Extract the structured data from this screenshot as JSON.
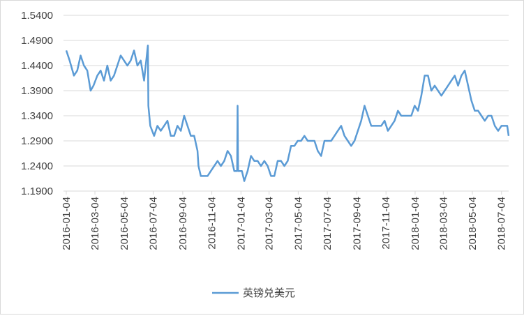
{
  "chart_data": {
    "type": "line",
    "x": [
      "2016-01-04",
      "2016-01-11",
      "2016-01-20",
      "2016-01-27",
      "2016-02-03",
      "2016-02-10",
      "2016-02-17",
      "2016-02-24",
      "2016-03-01",
      "2016-03-09",
      "2016-03-16",
      "2016-03-23",
      "2016-03-30",
      "2016-04-06",
      "2016-04-13",
      "2016-04-20",
      "2016-04-27",
      "2016-05-04",
      "2016-05-11",
      "2016-05-18",
      "2016-05-25",
      "2016-06-01",
      "2016-06-08",
      "2016-06-15",
      "2016-06-23",
      "2016-06-24",
      "2016-06-28",
      "2016-07-06",
      "2016-07-13",
      "2016-07-20",
      "2016-07-27",
      "2016-08-03",
      "2016-08-10",
      "2016-08-17",
      "2016-08-24",
      "2016-08-31",
      "2016-09-07",
      "2016-09-14",
      "2016-09-21",
      "2016-09-28",
      "2016-10-05",
      "2016-10-07",
      "2016-10-12",
      "2016-10-19",
      "2016-10-26",
      "2016-11-02",
      "2016-11-09",
      "2016-11-16",
      "2016-11-23",
      "2016-11-30",
      "2016-12-07",
      "2016-12-14",
      "2016-12-21",
      "2016-12-27",
      "2016-12-28",
      "2016-12-29",
      "2017-01-06",
      "2017-01-11",
      "2017-01-18",
      "2017-01-25",
      "2017-02-01",
      "2017-02-08",
      "2017-02-15",
      "2017-02-22",
      "2017-03-01",
      "2017-03-08",
      "2017-03-15",
      "2017-03-22",
      "2017-03-29",
      "2017-04-05",
      "2017-04-12",
      "2017-04-19",
      "2017-04-26",
      "2017-05-03",
      "2017-05-10",
      "2017-05-17",
      "2017-05-24",
      "2017-05-31",
      "2017-06-07",
      "2017-06-14",
      "2017-06-21",
      "2017-06-28",
      "2017-07-05",
      "2017-07-12",
      "2017-07-19",
      "2017-07-26",
      "2017-08-02",
      "2017-08-09",
      "2017-08-16",
      "2017-08-23",
      "2017-08-30",
      "2017-09-06",
      "2017-09-13",
      "2017-09-20",
      "2017-09-27",
      "2017-10-04",
      "2017-10-11",
      "2017-10-18",
      "2017-10-25",
      "2017-11-01",
      "2017-11-08",
      "2017-11-15",
      "2017-11-22",
      "2017-11-29",
      "2017-12-06",
      "2017-12-13",
      "2017-12-20",
      "2017-12-27",
      "2018-01-03",
      "2018-01-10",
      "2018-01-17",
      "2018-01-24",
      "2018-01-31",
      "2018-02-07",
      "2018-02-14",
      "2018-02-21",
      "2018-02-28",
      "2018-03-07",
      "2018-03-14",
      "2018-03-21",
      "2018-03-28",
      "2018-04-04",
      "2018-04-11",
      "2018-04-18",
      "2018-04-25",
      "2018-05-02",
      "2018-05-09",
      "2018-05-16",
      "2018-05-23",
      "2018-05-30",
      "2018-06-06",
      "2018-06-13",
      "2018-06-20",
      "2018-06-27",
      "2018-07-04",
      "2018-07-11",
      "2018-07-16",
      "2018-07-19"
    ],
    "series": [
      {
        "name": "英镑兑美元",
        "color": "#5b9bd5",
        "values": [
          1.47,
          1.45,
          1.42,
          1.43,
          1.46,
          1.44,
          1.43,
          1.39,
          1.4,
          1.42,
          1.43,
          1.41,
          1.44,
          1.41,
          1.42,
          1.44,
          1.46,
          1.45,
          1.44,
          1.45,
          1.47,
          1.44,
          1.45,
          1.41,
          1.48,
          1.36,
          1.32,
          1.3,
          1.32,
          1.31,
          1.32,
          1.33,
          1.3,
          1.3,
          1.32,
          1.31,
          1.34,
          1.32,
          1.3,
          1.3,
          1.27,
          1.24,
          1.22,
          1.22,
          1.22,
          1.23,
          1.24,
          1.25,
          1.24,
          1.25,
          1.27,
          1.26,
          1.23,
          1.23,
          1.36,
          1.23,
          1.23,
          1.21,
          1.23,
          1.26,
          1.25,
          1.25,
          1.24,
          1.25,
          1.24,
          1.22,
          1.22,
          1.25,
          1.25,
          1.24,
          1.25,
          1.28,
          1.28,
          1.29,
          1.29,
          1.3,
          1.29,
          1.29,
          1.29,
          1.27,
          1.26,
          1.29,
          1.29,
          1.29,
          1.3,
          1.31,
          1.32,
          1.3,
          1.29,
          1.28,
          1.29,
          1.31,
          1.33,
          1.36,
          1.34,
          1.32,
          1.32,
          1.32,
          1.32,
          1.33,
          1.31,
          1.32,
          1.33,
          1.35,
          1.34,
          1.34,
          1.34,
          1.34,
          1.36,
          1.35,
          1.38,
          1.42,
          1.42,
          1.39,
          1.4,
          1.39,
          1.38,
          1.39,
          1.4,
          1.41,
          1.42,
          1.4,
          1.42,
          1.43,
          1.4,
          1.37,
          1.35,
          1.35,
          1.34,
          1.33,
          1.34,
          1.34,
          1.32,
          1.31,
          1.32,
          1.32,
          1.32,
          1.3
        ]
      }
    ],
    "xlim": [
      "2016-01-04",
      "2018-07-19"
    ],
    "xticks": [
      "2016-01-04",
      "2016-03-04",
      "2016-05-04",
      "2016-07-04",
      "2016-09-04",
      "2016-11-04",
      "2017-01-04",
      "2017-03-04",
      "2017-05-04",
      "2017-07-04",
      "2017-09-04",
      "2017-11-04",
      "2018-01-04",
      "2018-03-04",
      "2018-05-04",
      "2018-07-04"
    ],
    "ylim": [
      1.19,
      1.54
    ],
    "yticks": [
      {
        "value": 1.19,
        "label": "1.1900"
      },
      {
        "value": 1.24,
        "label": "1.2400"
      },
      {
        "value": 1.29,
        "label": "1.2900"
      },
      {
        "value": 1.34,
        "label": "1.3400"
      },
      {
        "value": 1.39,
        "label": "1.3900"
      },
      {
        "value": 1.44,
        "label": "1.4400"
      },
      {
        "value": 1.49,
        "label": "1.4900"
      },
      {
        "value": 1.54,
        "label": "1.5400"
      }
    ],
    "grid": true,
    "legend": "bottom"
  }
}
